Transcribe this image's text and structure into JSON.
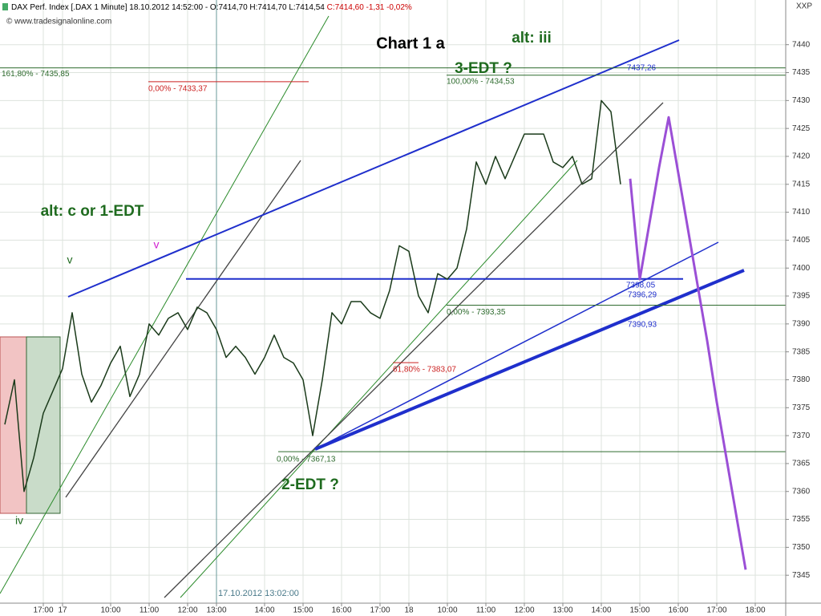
{
  "chart_data": {
    "type": "line",
    "title": "Chart 1 a",
    "header": [
      {
        "text": "DAX Perf. Index [.DAX  1 Minute] 18.10.2012 14:52:00 - O:7414,70 H:7414,70 L:7414,54",
        "color": "#000000"
      },
      {
        "text": "C:7414,60 -1,31 -0,02%",
        "color": "#cc0000"
      }
    ],
    "copyright": "© www.tradesignalonline.com",
    "symbol": "XXP",
    "crosshair_label": "17.10.2012 13:02:00",
    "categories": [
      null,
      null,
      null,
      null,
      "17:00",
      null,
      "17",
      null,
      null,
      null,
      null,
      "10:00",
      null,
      null,
      null,
      "11:00",
      null,
      null,
      null,
      "12:00",
      null,
      null,
      "13:00",
      null,
      null,
      null,
      null,
      "14:00",
      null,
      null,
      null,
      "15:00",
      null,
      null,
      null,
      "16:00",
      null,
      null,
      null,
      "17:00",
      null,
      null,
      "18",
      null,
      null,
      null,
      "10:00",
      null,
      null,
      null,
      "11:00",
      null,
      null,
      null,
      "12:00",
      null,
      null,
      null,
      "13:00",
      null,
      null,
      null,
      "14:00",
      null,
      null,
      null,
      "15:00",
      null,
      null,
      null,
      "16:00",
      null,
      null,
      null,
      "17:00",
      null,
      null,
      null,
      "18:00",
      null
    ],
    "series": [
      {
        "color": "#1a3a1a",
        "values": [
          7372,
          7380,
          7360,
          7366,
          7374,
          7378,
          7382,
          7392,
          7381,
          7376,
          7379,
          7383,
          7386,
          7377,
          7381,
          7390,
          7388,
          7391,
          7392,
          7389,
          7393,
          7392,
          7389,
          7384,
          7386,
          7384,
          7381,
          7384,
          7388,
          7384,
          7383,
          7380,
          7370,
          7380,
          7392,
          7390,
          7394,
          7394,
          7392,
          7391,
          7396,
          7404,
          7403,
          7395,
          7392,
          7399,
          7398,
          7400,
          7407,
          7419,
          7415,
          7420,
          7416,
          7420,
          7424,
          7424,
          7424,
          7419,
          7418,
          7420,
          7415,
          7416,
          7430,
          7428,
          7415,
          null,
          null,
          null,
          null,
          null,
          null,
          null,
          null,
          null,
          null,
          null,
          null,
          null,
          null,
          null
        ]
      },
      {
        "color": "#9b4fd6",
        "values": [
          null,
          null,
          null,
          null,
          null,
          null,
          null,
          null,
          null,
          null,
          null,
          null,
          null,
          null,
          null,
          null,
          null,
          null,
          null,
          null,
          null,
          null,
          null,
          null,
          null,
          null,
          null,
          null,
          null,
          null,
          null,
          null,
          null,
          null,
          null,
          null,
          null,
          null,
          null,
          null,
          null,
          null,
          null,
          null,
          null,
          null,
          null,
          null,
          null,
          null,
          null,
          null,
          null,
          null,
          null,
          null,
          null,
          null,
          null,
          null,
          null,
          null,
          null,
          null,
          null,
          7416,
          7398,
          7408,
          7418,
          7427,
          7417,
          7407,
          7397,
          7387,
          7376,
          7366,
          7356,
          7346,
          null,
          null
        ]
      }
    ],
    "ylim": [
      7340,
      7448
    ],
    "yticks": [
      7345,
      7350,
      7355,
      7360,
      7365,
      7370,
      7375,
      7380,
      7385,
      7390,
      7395,
      7400,
      7405,
      7410,
      7415,
      7420,
      7425,
      7430,
      7435,
      7440
    ],
    "grid": true,
    "levels": [
      {
        "label": "161,80% - 7435,85",
        "value": 7435.85,
        "color": "#2e6b2e"
      },
      {
        "label": "0,00% - 7433,37",
        "value": 7433.37,
        "color": "#cc2222"
      },
      {
        "label": "100,00% - 7434,53",
        "value": 7434.53,
        "color": "#2e6b2e"
      },
      {
        "label": "0,00% - 7393,35",
        "value": 7393.35,
        "color": "#2e6b2e"
      },
      {
        "label": "61,80% - 7383,07",
        "value": 7383.07,
        "color": "#cc2222"
      },
      {
        "label": "0,00% - 7367,13",
        "value": 7367.13,
        "color": "#2e6b2e"
      },
      {
        "label": "7398,05",
        "value": 7398.05,
        "color": "#1f2fcc"
      }
    ],
    "annotations": [
      {
        "text": "alt: iii",
        "color": "#1f6b1f"
      },
      {
        "text": "3-EDT ?",
        "color": "#1f6b1f"
      },
      {
        "text": "alt: c or 1-EDT",
        "color": "#1f6b1f"
      },
      {
        "text": "2-EDT ?",
        "color": "#1f6b1f"
      },
      {
        "text": "v",
        "color": "#d020d0"
      },
      {
        "text": "v",
        "color": "#1f6b1f"
      },
      {
        "text": "iv",
        "color": "#1f6b1f"
      },
      {
        "text": "7437,26",
        "color": "#1f2fcc"
      },
      {
        "text": "7396,29",
        "color": "#1f2fcc"
      },
      {
        "text": "7390,93",
        "color": "#1f2fcc"
      }
    ]
  }
}
